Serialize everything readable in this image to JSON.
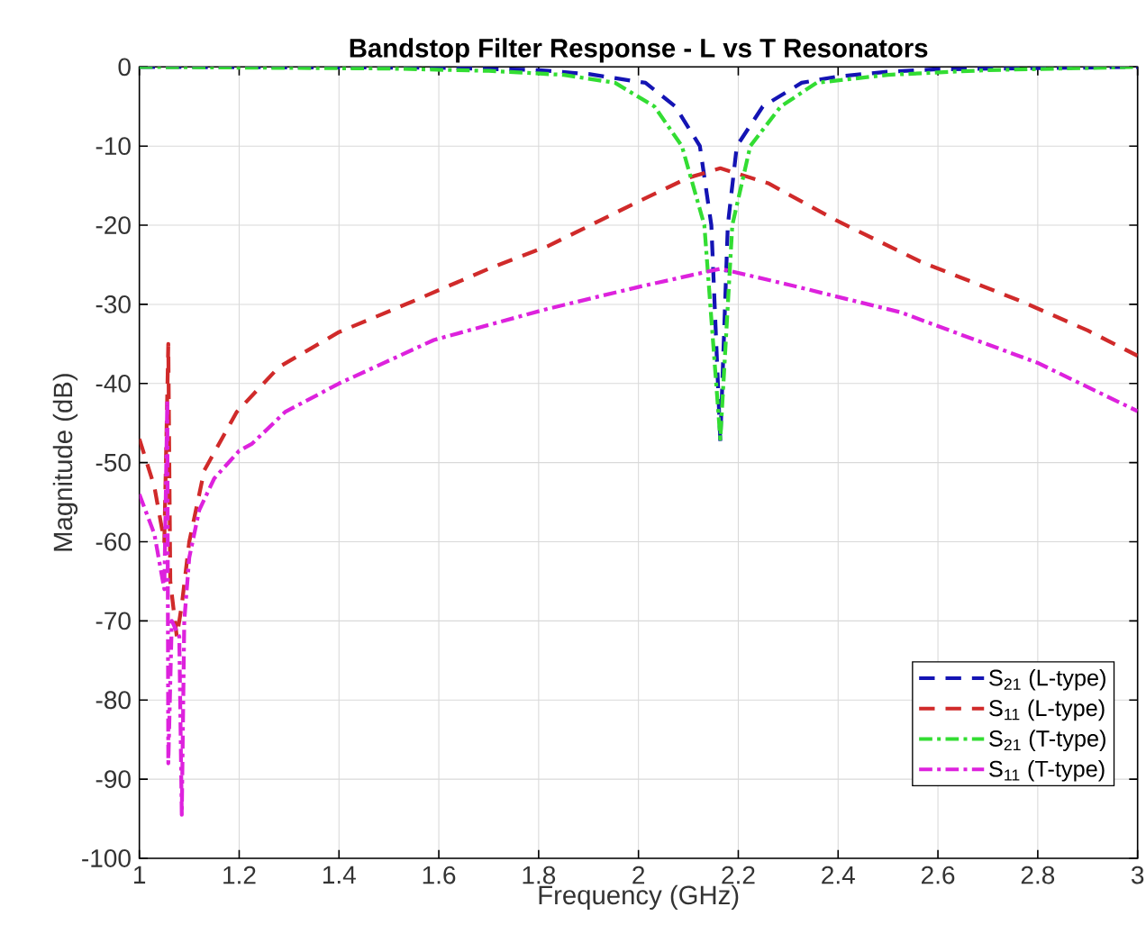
{
  "chart_data": {
    "type": "line",
    "title": "Bandstop Filter Response - L vs T Resonators",
    "xlabel": "Frequency (GHz)",
    "ylabel": "Magnitude (dB)",
    "xlim": [
      1,
      3
    ],
    "ylim": [
      -100,
      0
    ],
    "xticks": [
      1,
      1.2,
      1.4,
      1.6,
      1.8,
      2,
      2.2,
      2.4,
      2.6,
      2.8,
      3
    ],
    "yticks": [
      -100,
      -90,
      -80,
      -70,
      -60,
      -50,
      -40,
      -30,
      -20,
      -10,
      0
    ],
    "grid": true,
    "legend": "bottom right",
    "series": [
      {
        "name": "S$_{21}$ (L-type)",
        "color": "#1414b4",
        "line_style": "dashed",
        "x": [
          1,
          1.6,
          1.8,
          1.9,
          2.014,
          2.074,
          2.123,
          2.146,
          2.164,
          2.179,
          2.197,
          2.249,
          2.327,
          2.4,
          2.5,
          2.6,
          3
        ],
        "values": [
          0,
          -0.1,
          -0.4,
          -0.9,
          -2,
          -5,
          -10,
          -20,
          -47.3,
          -20,
          -10,
          -5,
          -2,
          -1.2,
          -0.6,
          -0.3,
          0
        ]
      },
      {
        "name": "S$_{11}$ (L-type)",
        "color": "#d02a2a",
        "line_style": "dashed",
        "x": [
          1,
          1.03,
          1.05,
          1.058,
          1.062,
          1.075,
          1.085,
          1.1,
          1.13,
          1.195,
          1.28,
          1.4,
          1.545,
          1.7,
          1.82,
          2.0,
          2.1,
          2.164,
          2.26,
          2.4,
          2.565,
          2.77,
          2.9,
          3
        ],
        "values": [
          -47,
          -53,
          -60,
          -35,
          -65,
          -72,
          -68,
          -60,
          -51,
          -43.6,
          -37.9,
          -33.5,
          -29.7,
          -25.5,
          -22.6,
          -17,
          -14,
          -12.8,
          -14.7,
          -19.5,
          -24.6,
          -29.7,
          -33.3,
          -36.5
        ]
      },
      {
        "name": "S$_{21}$ (T-type)",
        "color": "#33dd33",
        "line_style": "dashdot",
        "x": [
          1,
          1.5,
          1.7,
          1.85,
          1.953,
          2.032,
          2.087,
          2.132,
          2.164,
          2.188,
          2.224,
          2.285,
          2.357,
          2.5,
          2.7,
          3
        ],
        "values": [
          0,
          -0.2,
          -0.5,
          -1,
          -2,
          -5,
          -10,
          -20,
          -47,
          -20,
          -10,
          -5,
          -2,
          -1,
          -0.4,
          0
        ]
      },
      {
        "name": "S$_{11}$ (T-type)",
        "color": "#dd22dd",
        "line_style": "dashdot",
        "x": [
          1,
          1.03,
          1.05,
          1.056,
          1.058,
          1.065,
          1.08,
          1.085,
          1.09,
          1.1,
          1.12,
          1.15,
          1.2,
          1.226,
          1.292,
          1.4,
          1.59,
          1.816,
          2.0,
          2.164,
          2.3,
          2.525,
          2.8,
          3
        ],
        "values": [
          -54,
          -59,
          -66,
          -42,
          -88,
          -70,
          -72,
          -94.5,
          -70,
          -62,
          -56,
          -52,
          -48.5,
          -47.6,
          -43.6,
          -40,
          -34.5,
          -30.6,
          -27.8,
          -25.5,
          -27.5,
          -31,
          -37.4,
          -43.5
        ]
      }
    ]
  }
}
